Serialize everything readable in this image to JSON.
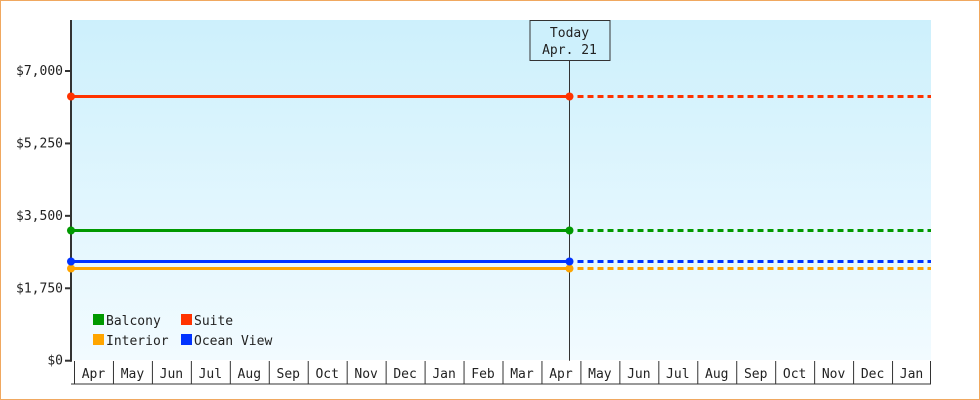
{
  "chart_data": {
    "type": "line",
    "title": "",
    "xlabel": "",
    "ylabel": "",
    "ylim": [
      0,
      8200
    ],
    "yticks": [
      0,
      1750,
      3500,
      5250,
      7000
    ],
    "ytick_labels": [
      "$0",
      "$1,750",
      "$3,500",
      "$5,250",
      "$7,000"
    ],
    "x_categories": [
      "Apr",
      "May",
      "Jun",
      "Jul",
      "Aug",
      "Sep",
      "Oct",
      "Nov",
      "Dec",
      "Jan",
      "Feb",
      "Mar",
      "Apr",
      "May",
      "Jun",
      "Jul",
      "Aug",
      "Sep",
      "Oct",
      "Nov",
      "Dec",
      "Jan"
    ],
    "today_marker": {
      "line1": "Today",
      "line2": "Apr. 21",
      "month_index": 12,
      "day_fraction": 0.7
    },
    "series": [
      {
        "name": "Balcony",
        "color": "#009900",
        "value": 3150
      },
      {
        "name": "Suite",
        "color": "#ff3300",
        "value": 6400
      },
      {
        "name": "Interior",
        "color": "#ffa500",
        "value": 2230
      },
      {
        "name": "Ocean View",
        "color": "#0033ff",
        "value": 2400
      }
    ],
    "series_style": "solid up to Today, dotted projection after",
    "grid": false,
    "legend_position": "bottom-left",
    "colors": {
      "frame_border": "#f0a860",
      "plot_bg_top": "#cdf0fc",
      "plot_bg_bottom": "#f2fbff",
      "axis": "#333333"
    }
  }
}
